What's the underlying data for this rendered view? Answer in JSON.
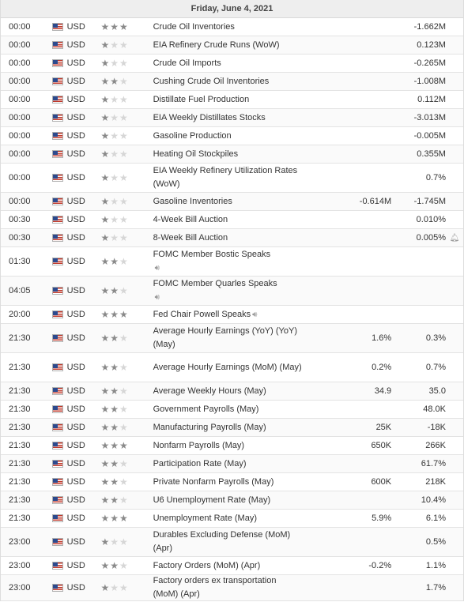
{
  "header": {
    "date": "Friday, June 4, 2021"
  },
  "icons": {
    "flag": "us-flag-icon",
    "star": "star-icon",
    "speaker": "speaker-icon",
    "bell": "bell-icon"
  },
  "rows": [
    {
      "time": "00:00",
      "currency": "USD",
      "importance": 3,
      "event": "Crude Oil Inventories",
      "actual": "",
      "forecast": "",
      "previous": "-1.662M"
    },
    {
      "time": "00:00",
      "currency": "USD",
      "importance": 1,
      "event": "EIA Refinery Crude Runs (WoW)",
      "actual": "",
      "forecast": "",
      "previous": "0.123M"
    },
    {
      "time": "00:00",
      "currency": "USD",
      "importance": 1,
      "event": "Crude Oil Imports",
      "actual": "",
      "forecast": "",
      "previous": "-0.265M"
    },
    {
      "time": "00:00",
      "currency": "USD",
      "importance": 2,
      "event": "Cushing Crude Oil Inventories",
      "actual": "",
      "forecast": "",
      "previous": "-1.008M"
    },
    {
      "time": "00:00",
      "currency": "USD",
      "importance": 1,
      "event": "Distillate Fuel Production",
      "actual": "",
      "forecast": "",
      "previous": "0.112M"
    },
    {
      "time": "00:00",
      "currency": "USD",
      "importance": 1,
      "event": "EIA Weekly Distillates Stocks",
      "actual": "",
      "forecast": "",
      "previous": "-3.013M"
    },
    {
      "time": "00:00",
      "currency": "USD",
      "importance": 1,
      "event": "Gasoline Production",
      "actual": "",
      "forecast": "",
      "previous": "-0.005M"
    },
    {
      "time": "00:00",
      "currency": "USD",
      "importance": 1,
      "event": "Heating Oil Stockpiles",
      "actual": "",
      "forecast": "",
      "previous": "0.355M"
    },
    {
      "time": "00:00",
      "currency": "USD",
      "importance": 1,
      "event": "EIA Weekly Refinery Utilization Rates (WoW)",
      "actual": "",
      "forecast": "",
      "previous": "0.7%"
    },
    {
      "time": "00:00",
      "currency": "USD",
      "importance": 1,
      "event": "Gasoline Inventories",
      "actual": "",
      "forecast": "-0.614M",
      "previous": "-1.745M"
    },
    {
      "time": "00:30",
      "currency": "USD",
      "importance": 1,
      "event": "4-Week Bill Auction",
      "actual": "",
      "forecast": "",
      "previous": "0.010%"
    },
    {
      "time": "00:30",
      "currency": "USD",
      "importance": 1,
      "event": "8-Week Bill Auction",
      "actual": "",
      "forecast": "",
      "previous": "0.005%",
      "alert": true
    },
    {
      "time": "01:30",
      "currency": "USD",
      "importance": 2,
      "event": "FOMC Member Bostic Speaks",
      "speech": true,
      "speech_inline": false,
      "actual": "",
      "forecast": "",
      "previous": ""
    },
    {
      "time": "04:05",
      "currency": "USD",
      "importance": 2,
      "event": "FOMC Member Quarles Speaks",
      "speech": true,
      "speech_inline": false,
      "actual": "",
      "forecast": "",
      "previous": ""
    },
    {
      "time": "20:00",
      "currency": "USD",
      "importance": 3,
      "event": "Fed Chair Powell Speaks",
      "speech": true,
      "speech_inline": true,
      "actual": "",
      "forecast": "",
      "previous": ""
    },
    {
      "time": "21:30",
      "currency": "USD",
      "importance": 2,
      "event": "Average Hourly Earnings (YoY) (YoY) (May)",
      "actual": "",
      "forecast": "1.6%",
      "previous": "0.3%"
    },
    {
      "time": "21:30",
      "currency": "USD",
      "importance": 2,
      "event": "Average Hourly Earnings (MoM) (May)",
      "actual": "",
      "forecast": "0.2%",
      "previous": "0.7%"
    },
    {
      "time": "21:30",
      "currency": "USD",
      "importance": 2,
      "event": "Average Weekly Hours (May)",
      "actual": "",
      "forecast": "34.9",
      "previous": "35.0"
    },
    {
      "time": "21:30",
      "currency": "USD",
      "importance": 2,
      "event": "Government Payrolls (May)",
      "actual": "",
      "forecast": "",
      "previous": "48.0K"
    },
    {
      "time": "21:30",
      "currency": "USD",
      "importance": 2,
      "event": "Manufacturing Payrolls (May)",
      "actual": "",
      "forecast": "25K",
      "previous": "-18K"
    },
    {
      "time": "21:30",
      "currency": "USD",
      "importance": 3,
      "event": "Nonfarm Payrolls (May)",
      "actual": "",
      "forecast": "650K",
      "previous": "266K"
    },
    {
      "time": "21:30",
      "currency": "USD",
      "importance": 2,
      "event": "Participation Rate (May)",
      "actual": "",
      "forecast": "",
      "previous": "61.7%"
    },
    {
      "time": "21:30",
      "currency": "USD",
      "importance": 2,
      "event": "Private Nonfarm Payrolls (May)",
      "actual": "",
      "forecast": "600K",
      "previous": "218K"
    },
    {
      "time": "21:30",
      "currency": "USD",
      "importance": 2,
      "event": "U6 Unemployment Rate (May)",
      "actual": "",
      "forecast": "",
      "previous": "10.4%"
    },
    {
      "time": "21:30",
      "currency": "USD",
      "importance": 3,
      "event": "Unemployment Rate (May)",
      "actual": "",
      "forecast": "5.9%",
      "previous": "6.1%"
    },
    {
      "time": "23:00",
      "currency": "USD",
      "importance": 1,
      "event": "Durables Excluding Defense (MoM) (Apr)",
      "actual": "",
      "forecast": "",
      "previous": "0.5%"
    },
    {
      "time": "23:00",
      "currency": "USD",
      "importance": 2,
      "event": "Factory Orders (MoM) (Apr)",
      "actual": "",
      "forecast": "-0.2%",
      "previous": "1.1%"
    },
    {
      "time": "23:00",
      "currency": "USD",
      "importance": 1,
      "event": "Factory orders ex transportation (MoM) (Apr)",
      "actual": "",
      "forecast": "",
      "previous": "1.7%"
    }
  ]
}
